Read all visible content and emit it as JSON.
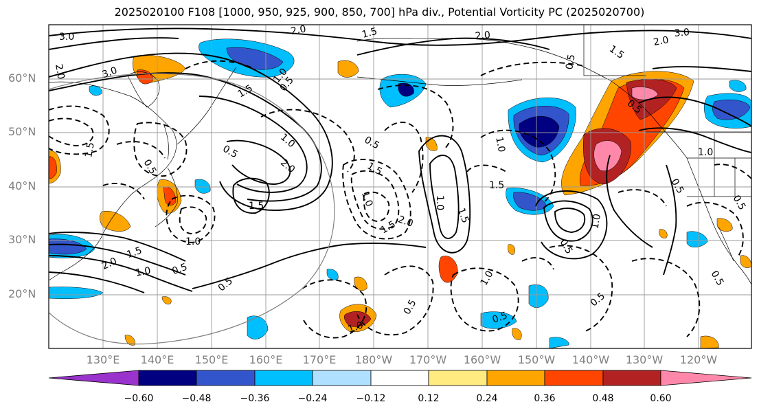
{
  "title": "2025020100 F108 [1000, 950, 925, 900, 850, 700] hPa div., Potential Vorticity PC (2025020700)",
  "lat_labels": [
    "60°N",
    "50°N",
    "40°N",
    "30°N",
    "20°N"
  ],
  "lon_labels": [
    "130°E",
    "140°E",
    "150°E",
    "160°E",
    "170°E",
    "180°W",
    "170°W",
    "160°W",
    "150°W",
    "140°W",
    "130°W",
    "120°W"
  ],
  "colorbar": {
    "colors": [
      "#9933cc",
      "#000080",
      "#3355cc",
      "#00bfff",
      "#b0e0ff",
      "#ffffff",
      "#ffeb80",
      "#ffa500",
      "#ff4500",
      "#b22222",
      "#ff88aa"
    ],
    "ticks": [
      "−0.60",
      "−0.48",
      "−0.36",
      "−0.24",
      "−0.12",
      "0.12",
      "0.24",
      "0.36",
      "0.48",
      "0.60"
    ]
  },
  "contour_labels": [
    "3.0",
    "2.0",
    "1.5",
    "2.0",
    "3.0",
    "2.0",
    "1.5",
    "2.0",
    "3.0",
    "1.5",
    "1.0",
    "0.5",
    "2.0",
    "1.5",
    "1.0",
    "0.5",
    "0.5",
    "1.0",
    "1.5",
    "2.0",
    "1.0",
    "1.5",
    "1.5",
    "1.0",
    "0.5",
    "1.5",
    "1.0",
    "0.5",
    "0.5",
    "1.5",
    "2.0",
    "1.5",
    "1.0",
    "0.5",
    "0.5",
    "0.5",
    "1.0",
    "0.5",
    "0.5",
    "1.0",
    "1.0",
    "1.0",
    "0.5",
    "0.5",
    "0.5",
    "0.5"
  ]
}
